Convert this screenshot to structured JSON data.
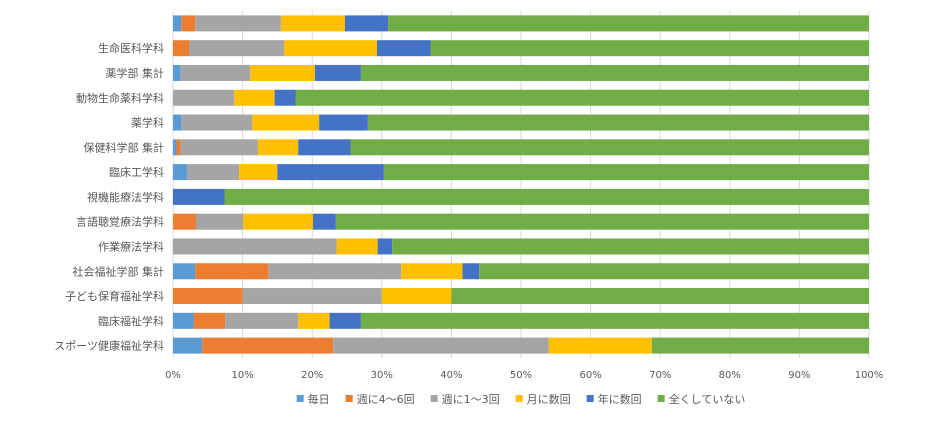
{
  "chart_data": {
    "type": "bar",
    "orientation": "horizontal",
    "stacked": "percent",
    "categories": [
      "",
      "生命医科学科",
      "薬学部 集計",
      "動物生命薬科学科",
      "薬学科",
      "保健科学部 集計",
      "臨床工学科",
      "視機能療法学科",
      "言語聴覚療法学科",
      "作業療法学科",
      "社会福祉学部 集計",
      "子ども保育福祉学科",
      "臨床福祉学科",
      "スポーツ健康福祉学科"
    ],
    "series": [
      {
        "name": "毎日",
        "color": "#5B9BD5",
        "values": [
          1.2,
          0,
          1.1,
          0,
          1.2,
          0.5,
          2.0,
          0,
          0,
          0,
          3.2,
          0,
          3.0,
          4.2
        ]
      },
      {
        "name": "週に4～6回",
        "color": "#ED7D31",
        "values": [
          2.0,
          2.3,
          0,
          0,
          0,
          0.6,
          0,
          0,
          3.3,
          0,
          10.5,
          10.0,
          4.5,
          18.8
        ]
      },
      {
        "name": "週に1～3回",
        "color": "#A5A5A5",
        "values": [
          12.3,
          13.7,
          10.0,
          8.8,
          10.2,
          11.1,
          7.5,
          0,
          6.8,
          23.5,
          19.1,
          20.0,
          10.5,
          31.0
        ]
      },
      {
        "name": "月に数回",
        "color": "#FFC000",
        "values": [
          9.2,
          13.3,
          9.3,
          5.8,
          9.6,
          5.8,
          5.5,
          0,
          10.0,
          5.9,
          8.8,
          10.0,
          4.5,
          14.8
        ]
      },
      {
        "name": "年に数回",
        "color": "#4472C4",
        "values": [
          6.2,
          7.7,
          6.6,
          3.0,
          7.0,
          7.5,
          15.3,
          7.4,
          3.3,
          2.1,
          2.4,
          0,
          4.5,
          0
        ]
      },
      {
        "name": "全くしていない",
        "color": "#70AD47",
        "values": [
          69.1,
          63.0,
          73.0,
          82.4,
          72.0,
          74.5,
          69.7,
          92.6,
          76.6,
          68.5,
          56.0,
          60.0,
          73.0,
          31.2
        ]
      }
    ],
    "xlim": [
      0,
      100
    ],
    "x_ticks": [
      "0%",
      "10%",
      "20%",
      "30%",
      "40%",
      "50%",
      "60%",
      "70%",
      "80%",
      "90%",
      "100%"
    ],
    "grid": true,
    "legend": "bottom"
  }
}
